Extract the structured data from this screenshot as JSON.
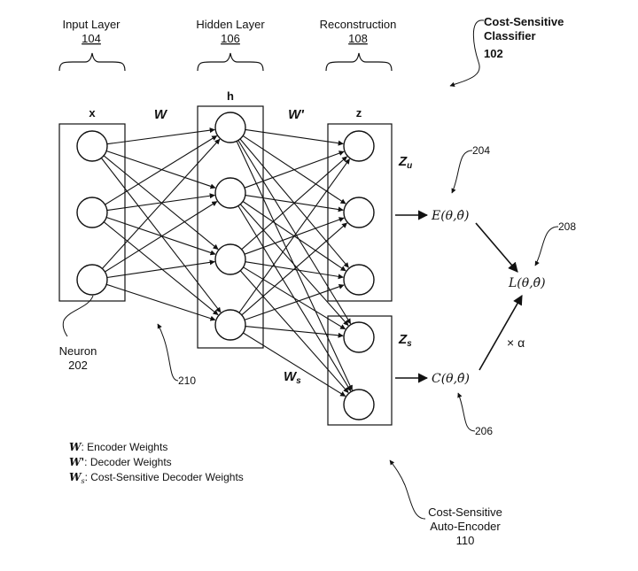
{
  "layers": {
    "input": {
      "title": "Input Layer",
      "ref": "104",
      "symbol": "x"
    },
    "hidden": {
      "title": "Hidden Layer",
      "ref": "106",
      "symbol": "h"
    },
    "reconstruction": {
      "title": "Reconstruction",
      "ref": "108",
      "symbol": "z"
    }
  },
  "classifier": {
    "line1": "Cost-Sensitive",
    "line2": "Classifier",
    "ref": "102"
  },
  "weights": {
    "encoder": "W",
    "decoder": "W'",
    "cost_sensitive": "W"
  },
  "groups": {
    "zu_main": "Z",
    "zu_sub": "u",
    "zs_main": "Z",
    "zs_sub": "s"
  },
  "formulas": {
    "error": "E(θ,θ̂)",
    "cost": "C(θ,θ̂)",
    "loss": "L(θ,θ̂)",
    "alpha": "× α"
  },
  "refs": {
    "r204": "204",
    "r208": "208",
    "r206": "206",
    "r210": "210"
  },
  "neuron_label": {
    "line1": "Neuron",
    "line2": "202"
  },
  "legend": {
    "encoder": {
      "symbol": "W",
      "text": ": Encoder Weights"
    },
    "decoder": {
      "symbol": "W'",
      "text": ": Decoder Weights"
    },
    "cost": {
      "symbol": "W",
      "sub": "s",
      "text": ": Cost-Sensitive Decoder Weights"
    }
  },
  "autoencoder": {
    "line1": "Cost-Sensitive",
    "line2": "Auto-Encoder",
    "ref": "110"
  }
}
